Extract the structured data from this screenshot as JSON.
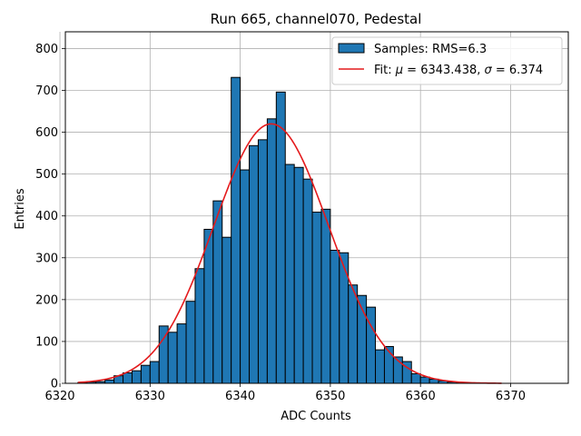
{
  "chart_data": {
    "type": "bar",
    "title": "Run 665, channel070, Pedestal",
    "xlabel": "ADC Counts",
    "ylabel": "Entries",
    "xlim": [
      6320.6,
      6376.4
    ],
    "ylim": [
      0,
      840
    ],
    "xticks": [
      6320,
      6330,
      6340,
      6350,
      6360,
      6370
    ],
    "yticks": [
      0,
      100,
      200,
      300,
      400,
      500,
      600,
      700,
      800
    ],
    "grid": true,
    "legend_position": "top-right",
    "bin_width": 1,
    "bins_start": [
      6322,
      6323,
      6324,
      6325,
      6326,
      6327,
      6328,
      6329,
      6330,
      6331,
      6332,
      6333,
      6334,
      6335,
      6336,
      6337,
      6338,
      6339,
      6340,
      6341,
      6342,
      6343,
      6344,
      6345,
      6346,
      6347,
      6348,
      6349,
      6350,
      6351,
      6352,
      6353,
      6354,
      6355,
      6356,
      6357,
      6358,
      6359,
      6360,
      6361,
      6362,
      6363,
      6364,
      6365
    ],
    "values": [
      2,
      3,
      4,
      8,
      18,
      25,
      30,
      43,
      52,
      137,
      122,
      142,
      196,
      274,
      368,
      436,
      349,
      731,
      510,
      568,
      582,
      632,
      696,
      523,
      516,
      488,
      409,
      416,
      318,
      312,
      235,
      210,
      182,
      80,
      88,
      63,
      52,
      23,
      15,
      10,
      6,
      3,
      2,
      1
    ],
    "series": [
      {
        "name": "Samples: RMS=6.3",
        "kind": "histogram",
        "color": "#1f77b4",
        "edge": "#000000"
      },
      {
        "name": "Fit: μ = 6343.438, σ = 6.374",
        "kind": "gaussian-fit",
        "color": "#e41a1c",
        "mu": 6343.438,
        "sigma": 6.374,
        "amplitude": 620,
        "x_range": [
          6322,
          6369
        ]
      }
    ],
    "legend": {
      "samples_label": "Samples: RMS=6.3",
      "fit_prefix": "Fit: ",
      "fit_mu_symbol": "μ",
      "fit_mu_value": " = 6343.438, ",
      "fit_sigma_symbol": "σ",
      "fit_sigma_value": " = 6.374"
    }
  }
}
